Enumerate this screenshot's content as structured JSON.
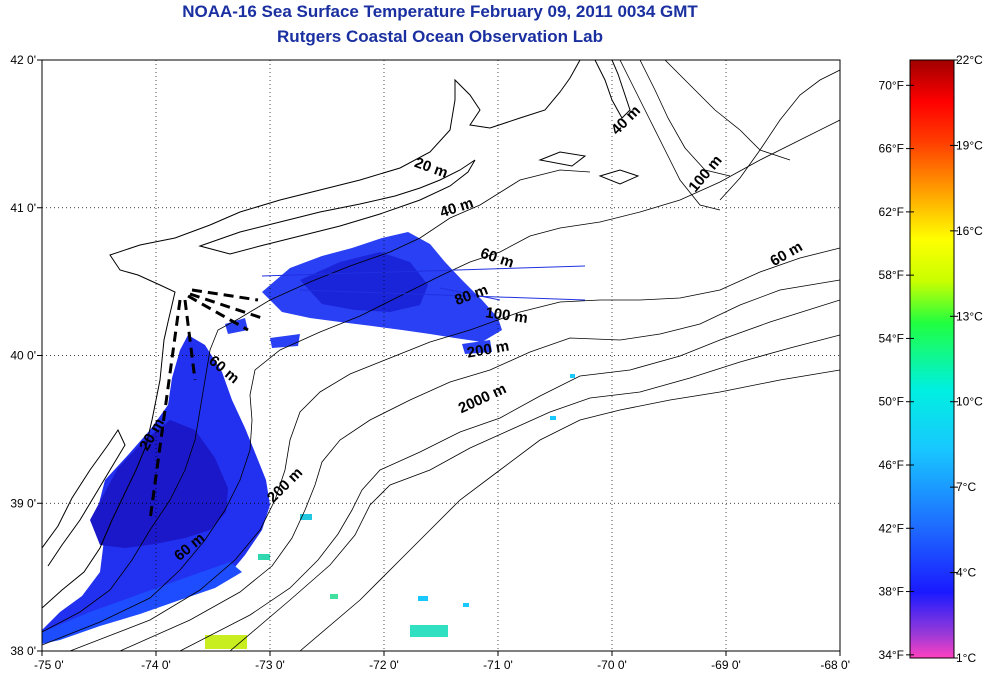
{
  "title": "NOAA-16 Sea Surface Temperature February 09, 2011 0034 GMT",
  "subtitle": "Rutgers Coastal Ocean Observation Lab",
  "map": {
    "lon_range": [
      -75,
      -68
    ],
    "lat_range": [
      38,
      42
    ],
    "lon_labels": [
      {
        "value": -75,
        "text": "-75 0'"
      },
      {
        "value": -74,
        "text": "-74 0'"
      },
      {
        "value": -73,
        "text": "-73 0'"
      },
      {
        "value": -72,
        "text": "-72 0'"
      },
      {
        "value": -71,
        "text": "-71 0'"
      },
      {
        "value": -70,
        "text": "-70 0'"
      },
      {
        "value": -69,
        "text": "-69 0'"
      },
      {
        "value": -68,
        "text": "-68 0'"
      }
    ],
    "lat_labels": [
      {
        "value": 42,
        "text": "42 0'"
      },
      {
        "value": 41,
        "text": "41 0'"
      },
      {
        "value": 40,
        "text": "40 0'"
      },
      {
        "value": 39,
        "text": "39 0'"
      },
      {
        "value": 38,
        "text": "38 0'"
      }
    ],
    "grid": true,
    "isobath_labels": [
      {
        "text": "20 m",
        "lon": -71.6,
        "lat": 41.24,
        "rotate": 20
      },
      {
        "text": "40 m",
        "lon": -71.35,
        "lat": 40.97,
        "rotate": -18
      },
      {
        "text": "60 m",
        "lon": -71.02,
        "lat": 40.63,
        "rotate": 18
      },
      {
        "text": "80 m",
        "lon": -71.22,
        "lat": 40.38,
        "rotate": -20
      },
      {
        "text": "100 m",
        "lon": -70.93,
        "lat": 40.24,
        "rotate": 8
      },
      {
        "text": "200 m",
        "lon": -71.08,
        "lat": 40.01,
        "rotate": -10
      },
      {
        "text": "2000 m",
        "lon": -71.12,
        "lat": 39.68,
        "rotate": -25
      },
      {
        "text": "40 m",
        "lon": -69.85,
        "lat": 41.57,
        "rotate": -45
      },
      {
        "text": "100 m",
        "lon": -69.15,
        "lat": 41.21,
        "rotate": -50
      },
      {
        "text": "60 m",
        "lon": -68.45,
        "lat": 40.66,
        "rotate": -30
      },
      {
        "text": "60 m",
        "lon": -73.43,
        "lat": 39.88,
        "rotate": 40
      },
      {
        "text": "20 m",
        "lon": -74.0,
        "lat": 39.45,
        "rotate": -60
      },
      {
        "text": "200 m",
        "lon": -72.84,
        "lat": 39.1,
        "rotate": -45
      },
      {
        "text": "60 m",
        "lon": -73.68,
        "lat": 38.68,
        "rotate": -40
      }
    ]
  },
  "colorbar": {
    "colors": [
      "#ff40c0",
      "#9a3ad8",
      "#1a1aff",
      "#1e6cff",
      "#18c8ff",
      "#00f0e0",
      "#20ff40",
      "#c8ff00",
      "#ffff00",
      "#ffa000",
      "#ff4000",
      "#ff0000",
      "#a00000"
    ],
    "stops": [
      0,
      0.04,
      0.11,
      0.22,
      0.35,
      0.45,
      0.56,
      0.63,
      0.7,
      0.78,
      0.86,
      0.93,
      1
    ],
    "celsius_labels": [
      {
        "value": 22,
        "text": "22°C"
      },
      {
        "value": 19,
        "text": "19°C"
      },
      {
        "value": 16,
        "text": "16°C"
      },
      {
        "value": 13,
        "text": "13°C"
      },
      {
        "value": 10,
        "text": "10°C"
      },
      {
        "value": 7,
        "text": "7°C"
      },
      {
        "value": 4,
        "text": "4°C"
      },
      {
        "value": 1,
        "text": "1°C"
      }
    ],
    "fahrenheit_labels": [
      {
        "value": 70,
        "text": "70°F"
      },
      {
        "value": 66,
        "text": "66°F"
      },
      {
        "value": 62,
        "text": "62°F"
      },
      {
        "value": 58,
        "text": "58°F"
      },
      {
        "value": 54,
        "text": "54°F"
      },
      {
        "value": 50,
        "text": "50°F"
      },
      {
        "value": 46,
        "text": "46°F"
      },
      {
        "value": 42,
        "text": "42°F"
      },
      {
        "value": 38,
        "text": "38°F"
      },
      {
        "value": 34,
        "text": "34°F"
      }
    ]
  }
}
